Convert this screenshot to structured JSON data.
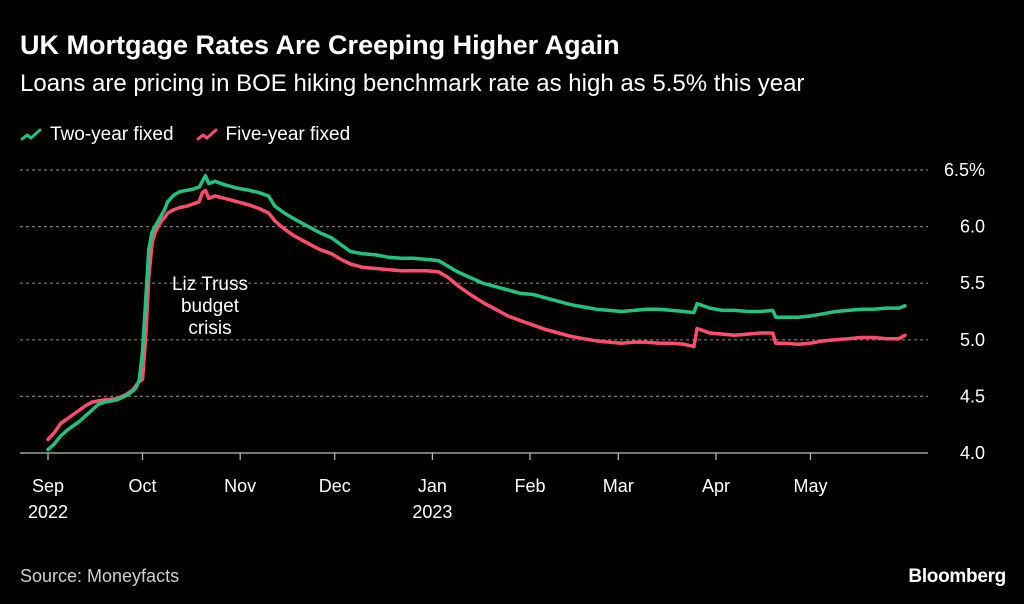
{
  "chart_data": {
    "type": "line",
    "title": "UK Mortgage Rates Are Creeping Higher Again",
    "subtitle": "Loans are pricing in BOE hiking benchmark rate as high as 5.5% this year",
    "ylim": [
      4.0,
      6.5
    ],
    "y_ticks": [
      "4.0",
      "4.5",
      "5.0",
      "5.5",
      "6.0",
      "6.5%"
    ],
    "y_tick_values": [
      4.0,
      4.5,
      5.0,
      5.5,
      6.0,
      6.5
    ],
    "x_ticks": [
      {
        "label": "Sep",
        "year": "2022",
        "day": 0
      },
      {
        "label": "Oct",
        "year": "",
        "day": 30
      },
      {
        "label": "Nov",
        "year": "",
        "day": 61
      },
      {
        "label": "Dec",
        "year": "",
        "day": 91
      },
      {
        "label": "Jan",
        "year": "2023",
        "day": 122
      },
      {
        "label": "Feb",
        "year": "",
        "day": 153
      },
      {
        "label": "Mar",
        "year": "",
        "day": 181
      },
      {
        "label": "Apr",
        "year": "",
        "day": 212
      },
      {
        "label": "May",
        "year": "",
        "day": 242
      }
    ],
    "xlim_days": [
      0,
      272
    ],
    "annotation": {
      "lines": [
        "Liz Truss",
        "budget",
        "crisis"
      ],
      "day": 30,
      "value": 5.4
    },
    "series": [
      {
        "name": "Two-year fixed",
        "color": "#1fc27e",
        "points": [
          [
            0,
            4.03
          ],
          [
            2,
            4.08
          ],
          [
            4,
            4.15
          ],
          [
            6,
            4.2
          ],
          [
            8,
            4.24
          ],
          [
            10,
            4.28
          ],
          [
            12,
            4.33
          ],
          [
            14,
            4.38
          ],
          [
            16,
            4.43
          ],
          [
            18,
            4.45
          ],
          [
            22,
            4.47
          ],
          [
            25,
            4.51
          ],
          [
            27,
            4.55
          ],
          [
            28,
            4.58
          ],
          [
            29,
            4.65
          ],
          [
            30,
            4.9
          ],
          [
            31,
            5.35
          ],
          [
            32,
            5.8
          ],
          [
            33,
            5.95
          ],
          [
            34,
            6.0
          ],
          [
            35,
            6.05
          ],
          [
            36,
            6.1
          ],
          [
            37,
            6.15
          ],
          [
            38,
            6.22
          ],
          [
            40,
            6.28
          ],
          [
            42,
            6.31
          ],
          [
            44,
            6.32
          ],
          [
            46,
            6.33
          ],
          [
            48,
            6.35
          ],
          [
            49,
            6.4
          ],
          [
            50,
            6.45
          ],
          [
            51,
            6.38
          ],
          [
            53,
            6.4
          ],
          [
            56,
            6.37
          ],
          [
            60,
            6.34
          ],
          [
            64,
            6.32
          ],
          [
            67,
            6.3
          ],
          [
            70,
            6.27
          ],
          [
            72,
            6.18
          ],
          [
            75,
            6.12
          ],
          [
            78,
            6.07
          ],
          [
            82,
            6.01
          ],
          [
            86,
            5.95
          ],
          [
            90,
            5.9
          ],
          [
            93,
            5.84
          ],
          [
            96,
            5.78
          ],
          [
            100,
            5.76
          ],
          [
            104,
            5.75
          ],
          [
            108,
            5.73
          ],
          [
            112,
            5.72
          ],
          [
            116,
            5.72
          ],
          [
            120,
            5.71
          ],
          [
            124,
            5.7
          ],
          [
            127,
            5.65
          ],
          [
            130,
            5.6
          ],
          [
            134,
            5.55
          ],
          [
            138,
            5.5
          ],
          [
            142,
            5.47
          ],
          [
            146,
            5.44
          ],
          [
            150,
            5.41
          ],
          [
            154,
            5.4
          ],
          [
            158,
            5.37
          ],
          [
            162,
            5.34
          ],
          [
            166,
            5.31
          ],
          [
            170,
            5.29
          ],
          [
            174,
            5.27
          ],
          [
            178,
            5.26
          ],
          [
            182,
            5.25
          ],
          [
            186,
            5.26
          ],
          [
            190,
            5.27
          ],
          [
            194,
            5.27
          ],
          [
            198,
            5.26
          ],
          [
            202,
            5.25
          ],
          [
            205,
            5.24
          ],
          [
            206,
            5.32
          ],
          [
            208,
            5.3
          ],
          [
            210,
            5.28
          ],
          [
            214,
            5.26
          ],
          [
            218,
            5.26
          ],
          [
            222,
            5.25
          ],
          [
            226,
            5.25
          ],
          [
            230,
            5.26
          ],
          [
            231,
            5.2
          ],
          [
            234,
            5.2
          ],
          [
            238,
            5.2
          ],
          [
            242,
            5.21
          ],
          [
            246,
            5.23
          ],
          [
            250,
            5.25
          ],
          [
            254,
            5.26
          ],
          [
            258,
            5.27
          ],
          [
            262,
            5.27
          ],
          [
            266,
            5.28
          ],
          [
            270,
            5.28
          ],
          [
            272,
            5.3
          ]
        ]
      },
      {
        "name": "Five-year fixed",
        "color": "#ff4d6d",
        "points": [
          [
            0,
            4.12
          ],
          [
            2,
            4.18
          ],
          [
            4,
            4.26
          ],
          [
            6,
            4.3
          ],
          [
            8,
            4.34
          ],
          [
            10,
            4.38
          ],
          [
            12,
            4.42
          ],
          [
            14,
            4.45
          ],
          [
            16,
            4.46
          ],
          [
            18,
            4.47
          ],
          [
            22,
            4.48
          ],
          [
            25,
            4.52
          ],
          [
            27,
            4.56
          ],
          [
            28,
            4.6
          ],
          [
            29,
            4.63
          ],
          [
            30,
            4.65
          ],
          [
            31,
            5.02
          ],
          [
            32,
            5.55
          ],
          [
            33,
            5.85
          ],
          [
            34,
            5.95
          ],
          [
            35,
            6.0
          ],
          [
            36,
            6.05
          ],
          [
            37,
            6.08
          ],
          [
            38,
            6.12
          ],
          [
            40,
            6.15
          ],
          [
            42,
            6.17
          ],
          [
            44,
            6.18
          ],
          [
            46,
            6.2
          ],
          [
            48,
            6.22
          ],
          [
            49,
            6.3
          ],
          [
            50,
            6.32
          ],
          [
            51,
            6.25
          ],
          [
            53,
            6.27
          ],
          [
            56,
            6.25
          ],
          [
            60,
            6.22
          ],
          [
            64,
            6.19
          ],
          [
            67,
            6.16
          ],
          [
            70,
            6.12
          ],
          [
            72,
            6.05
          ],
          [
            75,
            5.98
          ],
          [
            78,
            5.92
          ],
          [
            82,
            5.86
          ],
          [
            86,
            5.8
          ],
          [
            90,
            5.76
          ],
          [
            93,
            5.71
          ],
          [
            96,
            5.67
          ],
          [
            100,
            5.64
          ],
          [
            104,
            5.63
          ],
          [
            108,
            5.62
          ],
          [
            112,
            5.61
          ],
          [
            116,
            5.61
          ],
          [
            120,
            5.61
          ],
          [
            124,
            5.6
          ],
          [
            127,
            5.55
          ],
          [
            130,
            5.48
          ],
          [
            134,
            5.4
          ],
          [
            138,
            5.33
          ],
          [
            142,
            5.27
          ],
          [
            146,
            5.21
          ],
          [
            150,
            5.17
          ],
          [
            154,
            5.13
          ],
          [
            158,
            5.09
          ],
          [
            162,
            5.06
          ],
          [
            166,
            5.03
          ],
          [
            170,
            5.01
          ],
          [
            174,
            4.99
          ],
          [
            178,
            4.98
          ],
          [
            182,
            4.97
          ],
          [
            186,
            4.98
          ],
          [
            190,
            4.98
          ],
          [
            194,
            4.97
          ],
          [
            198,
            4.97
          ],
          [
            202,
            4.96
          ],
          [
            205,
            4.94
          ],
          [
            206,
            5.1
          ],
          [
            208,
            5.08
          ],
          [
            210,
            5.06
          ],
          [
            214,
            5.05
          ],
          [
            218,
            5.04
          ],
          [
            222,
            5.05
          ],
          [
            226,
            5.06
          ],
          [
            230,
            5.06
          ],
          [
            231,
            4.97
          ],
          [
            234,
            4.97
          ],
          [
            238,
            4.96
          ],
          [
            242,
            4.97
          ],
          [
            246,
            4.99
          ],
          [
            250,
            5.0
          ],
          [
            254,
            5.01
          ],
          [
            258,
            5.02
          ],
          [
            262,
            5.02
          ],
          [
            266,
            5.01
          ],
          [
            270,
            5.01
          ],
          [
            272,
            5.04
          ]
        ]
      }
    ]
  },
  "footer": {
    "source": "Source: Moneyfacts",
    "brand": "Bloomberg"
  }
}
